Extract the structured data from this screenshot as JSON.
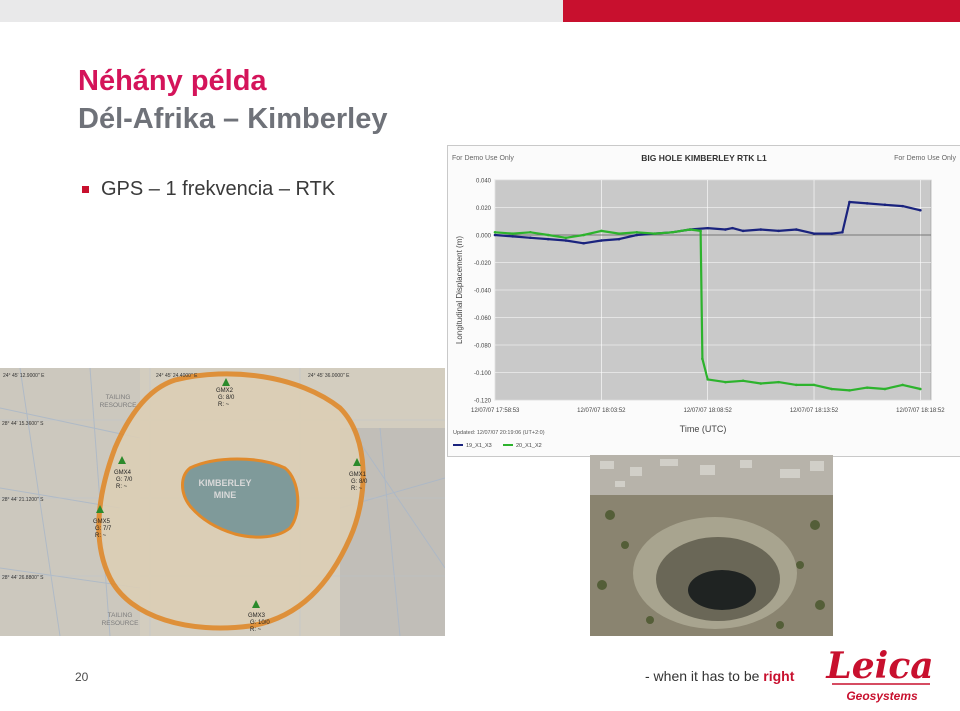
{
  "slide": {
    "title": "Néhány példa",
    "subtitle": "Dél-Afrika – Kimberley",
    "bullet": "GPS – 1 frekvencia – RTK",
    "page_number": "20",
    "slogan_prefix": "- when it has to be",
    "slogan_emphasis": "right",
    "logo_brand": "Leica",
    "logo_sub": "Geosystems"
  },
  "map": {
    "coords_top": [
      "24° 45' 12.9000\" E",
      "24° 45' 24.4000\" E",
      "24° 45' 36.0000\" E"
    ],
    "coords_left": [
      "28° 44' 15.3600\" S",
      "28° 44' 21.1200\" S",
      "28° 44' 26.8800\" S"
    ],
    "mine_label": [
      "KIMBERLEY",
      "MINE"
    ],
    "tailing_label": [
      "TAILING",
      "RESOURCE"
    ],
    "markers": [
      {
        "id": "GMX2",
        "g": "G: 8/0",
        "r": "R: ~"
      },
      {
        "id": "GMX4",
        "g": "G: 7/0",
        "r": "R: ~"
      },
      {
        "id": "GMX1",
        "g": "G: 8/0",
        "r": "R: ~"
      },
      {
        "id": "GMX5",
        "g": "G: 7/7",
        "r": "R: ~"
      },
      {
        "id": "GMX3",
        "g": "G: 10/0",
        "r": "R: ~"
      }
    ]
  },
  "colors": {
    "accent_red": "#c8102e",
    "title_pink": "#d4145a",
    "subtitle_grey": "#6f7279",
    "series1": "#1a237e",
    "series2": "#2db32d"
  },
  "chart_data": {
    "type": "line",
    "title": "BIG HOLE KIMBERLEY RTK L1",
    "watermark_left": "For Demo Use Only",
    "watermark_right": "For Demo Use Only",
    "ylabel": "Longitudinal Displacement (m)",
    "xlabel": "Time (UTC)",
    "ylim": [
      -0.12,
      0.04
    ],
    "yticks": [
      "0.040",
      "0.020",
      "0.000",
      "-0.020",
      "-0.040",
      "-0.060",
      "-0.080",
      "-0.100",
      "-0.120"
    ],
    "xticks": [
      "12/07/07 17:58:53",
      "12/07/07 18:03:52",
      "12/07/07 18:08:52",
      "12/07/07 18:13:52",
      "12/07/07 18:18:52"
    ],
    "updated": "Updated: 12/07/07 20:19:06 (UT+2:0)",
    "series": [
      {
        "name": "19_X1_X3",
        "x": [
          0,
          1,
          2,
          3,
          4,
          5,
          6,
          7,
          8,
          9,
          10,
          11,
          12,
          13,
          13.4,
          14,
          15,
          16,
          17,
          18,
          19,
          19.6,
          20,
          21,
          22,
          23,
          24
        ],
        "values": [
          0.0,
          -0.001,
          -0.002,
          -0.003,
          -0.004,
          -0.006,
          -0.004,
          -0.003,
          0.0,
          0.001,
          0.002,
          0.004,
          0.005,
          0.004,
          0.005,
          0.003,
          0.004,
          0.003,
          0.004,
          0.001,
          0.001,
          0.002,
          0.024,
          0.023,
          0.022,
          0.021,
          0.018
        ]
      },
      {
        "name": "20_X1_X2",
        "x": [
          0,
          1,
          2,
          3,
          4,
          5,
          6,
          7,
          8,
          9,
          10,
          11,
          11.6,
          11.7,
          12,
          13,
          14,
          15,
          16,
          17,
          18,
          19,
          20,
          21,
          22,
          23,
          24
        ],
        "values": [
          0.002,
          0.001,
          0.002,
          0.0,
          -0.002,
          0.0,
          0.003,
          0.001,
          0.002,
          0.001,
          0.002,
          0.004,
          0.003,
          -0.09,
          -0.105,
          -0.107,
          -0.106,
          -0.108,
          -0.107,
          -0.109,
          -0.109,
          -0.112,
          -0.113,
          -0.111,
          -0.112,
          -0.109,
          -0.112
        ]
      }
    ],
    "grid": true,
    "legend_position": "bottom-left"
  }
}
